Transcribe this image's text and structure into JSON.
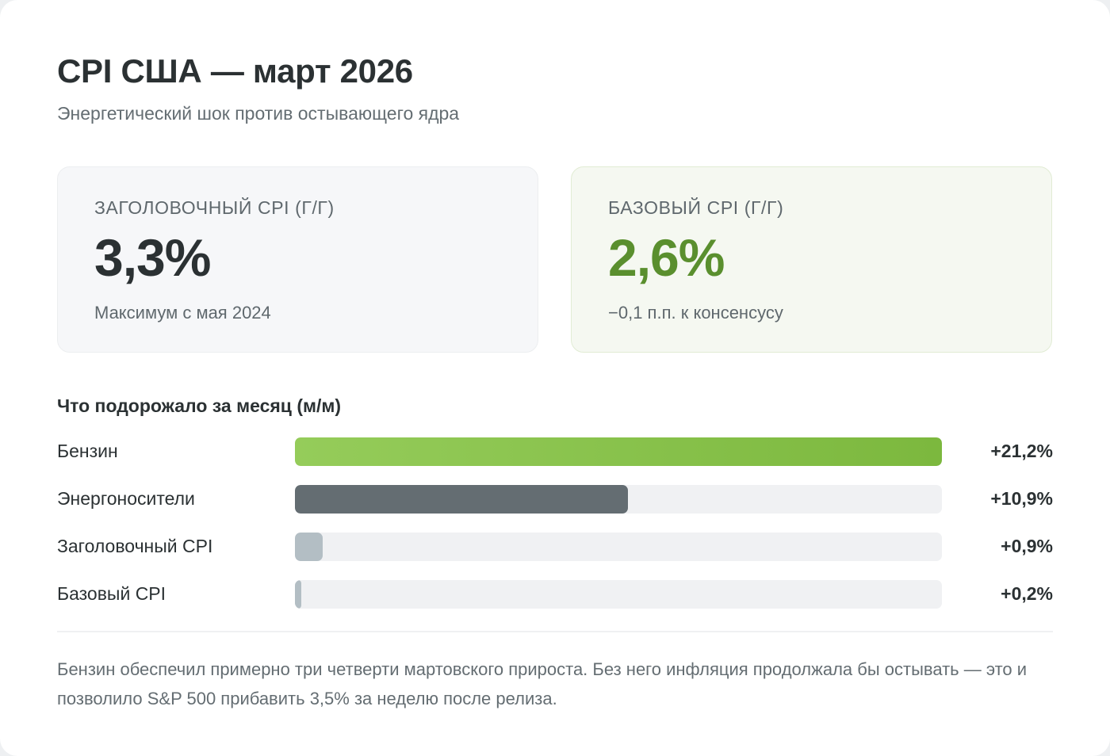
{
  "header": {
    "title": "CPI США — март 2026",
    "subtitle": "Энергетический шок против остывающего ядра"
  },
  "stats": [
    {
      "label": "Заголовочный CPI (г/г)",
      "value": "3,3%",
      "note": "Максимум с мая 2024",
      "color": "#2b3133"
    },
    {
      "label": "Базовый CPI (г/г)",
      "value": "2,6%",
      "note": "−0,1 п.п. к консенсусу",
      "color": "#5a8f2e"
    }
  ],
  "section": {
    "title": "Что подорожало за месяц (м/м)"
  },
  "chart_data": {
    "type": "bar",
    "orientation": "horizontal",
    "title": "Что подорожало за месяц (м/м)",
    "categories": [
      "Бензин",
      "Энергоносители",
      "Заголовочный CPI",
      "Базовый CPI"
    ],
    "values": [
      21.2,
      10.9,
      0.9,
      0.2
    ],
    "value_labels": [
      "+21,2%",
      "+10,9%",
      "+0,9%",
      "+0,2%"
    ],
    "unit": "%",
    "xlim": [
      0,
      21.2
    ],
    "grid": false,
    "legend": null,
    "colors": [
      "#8cc751",
      "#646d72",
      "#b3bec4",
      "#b3bec4"
    ]
  },
  "footnote": "Бензин обеспечил примерно три четверти мартовского прироста. Без него инфляция продолжала бы остывать — это и позволило S&P 500 прибавить 3,5% за неделю после релиза."
}
